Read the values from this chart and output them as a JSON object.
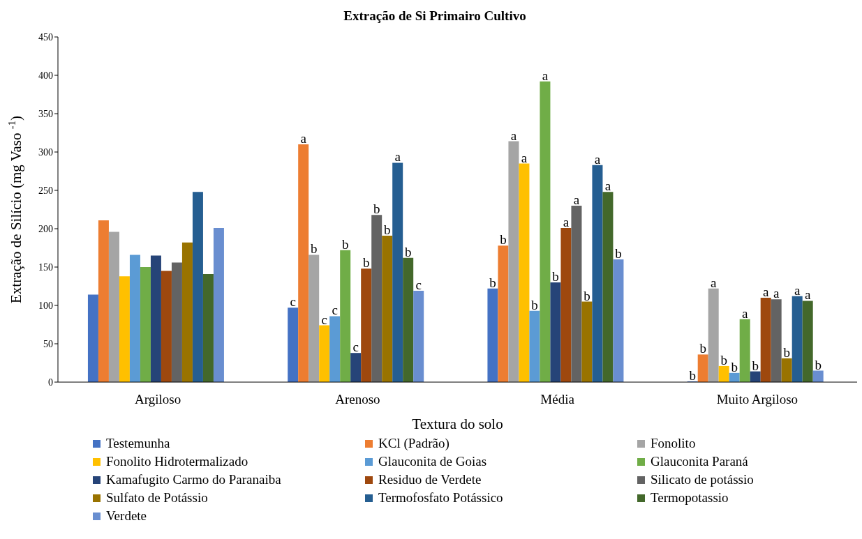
{
  "chart_data": {
    "type": "bar",
    "title": "Extração de Si Primairo Cultivo",
    "xlabel": "Textura do solo",
    "ylabel": "Extração de Silício (mg Vaso $^{-1}$)",
    "categories": [
      "Argiloso",
      "Arenoso",
      "Média",
      "Muito Argiloso"
    ],
    "ylim": [
      0,
      450
    ],
    "yticks": [
      0,
      50,
      100,
      150,
      200,
      250,
      300,
      350,
      400,
      450
    ],
    "grid": false,
    "legend": "bottom",
    "series": [
      {
        "name": "Testemunha",
        "color": "#4472c4",
        "values": [
          114,
          97,
          122,
          1
        ],
        "value_labels": [
          null,
          "c",
          "b",
          "b"
        ]
      },
      {
        "name": "KCl (Padrão)",
        "color": "#ed7d31",
        "values": [
          211,
          310,
          178,
          36
        ],
        "value_labels": [
          null,
          "a",
          "b",
          "b"
        ]
      },
      {
        "name": "Fonolito",
        "color": "#a5a5a5",
        "values": [
          196,
          166,
          314,
          122
        ],
        "value_labels": [
          null,
          "b",
          "a",
          "a"
        ]
      },
      {
        "name": "Fonolito Hidrotermalizado",
        "color": "#ffc000",
        "values": [
          138,
          74,
          285,
          21
        ],
        "value_labels": [
          null,
          "c",
          "a",
          "b"
        ]
      },
      {
        "name": "Glauconita de Goias",
        "color": "#5b9bd5",
        "values": [
          166,
          86,
          93,
          12
        ],
        "value_labels": [
          null,
          "c",
          "b",
          "b"
        ]
      },
      {
        "name": "Glauconita Paraná",
        "color": "#70ad47",
        "values": [
          150,
          172,
          392,
          82
        ],
        "value_labels": [
          null,
          "b",
          "a",
          "a"
        ]
      },
      {
        "name": "Kamafugito Carmo do Paranaiba",
        "color": "#264478",
        "values": [
          165,
          38,
          130,
          14
        ],
        "value_labels": [
          null,
          "c",
          "b",
          "b"
        ]
      },
      {
        "name": "Residuo de Verdete",
        "color": "#9e480e",
        "values": [
          145,
          148,
          201,
          110
        ],
        "value_labels": [
          null,
          "b",
          "a",
          "a"
        ]
      },
      {
        "name": "Silicato de potássio",
        "color": "#636363",
        "values": [
          156,
          218,
          230,
          108
        ],
        "value_labels": [
          null,
          "b",
          "a",
          "a"
        ]
      },
      {
        "name": "Sulfato de Potássio",
        "color": "#997300",
        "values": [
          182,
          191,
          105,
          31
        ],
        "value_labels": [
          null,
          "b",
          "b",
          "b"
        ]
      },
      {
        "name": "Termofosfato Potássico",
        "color": "#255e91",
        "values": [
          248,
          286,
          283,
          112
        ],
        "value_labels": [
          null,
          "a",
          "a",
          "a"
        ]
      },
      {
        "name": "Termopotassio",
        "color": "#43682b",
        "values": [
          141,
          162,
          248,
          106
        ],
        "value_labels": [
          null,
          "b",
          "a",
          "a"
        ]
      },
      {
        "name": "Verdete",
        "color": "#698ed0",
        "values": [
          201,
          119,
          160,
          15
        ],
        "value_labels": [
          null,
          "c",
          "b",
          "b"
        ]
      }
    ]
  }
}
